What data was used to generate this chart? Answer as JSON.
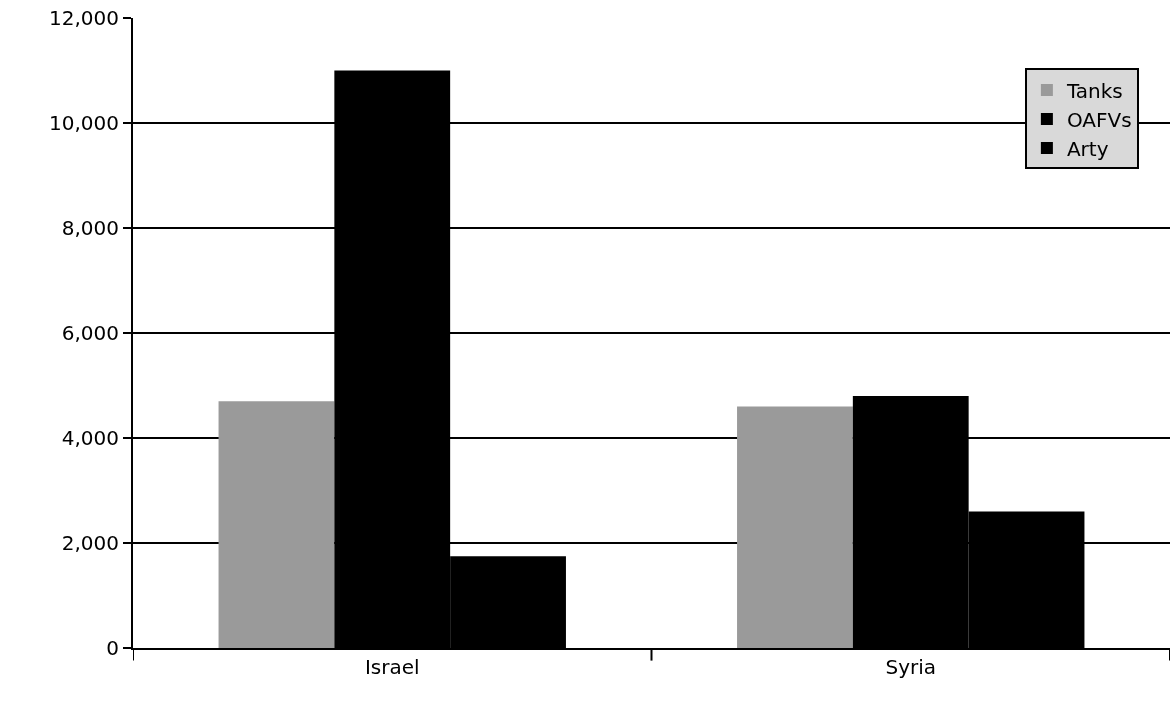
{
  "chart_data": {
    "type": "bar",
    "categories": [
      "Israel",
      "Syria"
    ],
    "series": [
      {
        "name": "Tanks",
        "color": "#9a9a9a",
        "values": [
          4700,
          4600
        ]
      },
      {
        "name": "OAFVs",
        "color": "#000000",
        "values": [
          11000,
          4800
        ]
      },
      {
        "name": "Arty",
        "color": "#000000",
        "values": [
          1750,
          2600
        ]
      }
    ],
    "ylim": [
      0,
      12000
    ],
    "yticks": [
      {
        "value": 0,
        "label": "0"
      },
      {
        "value": 2000,
        "label": "2,000"
      },
      {
        "value": 4000,
        "label": "4,000"
      },
      {
        "value": 6000,
        "label": "6,000"
      },
      {
        "value": 8000,
        "label": "8,000"
      },
      {
        "value": 10000,
        "label": "10,000"
      },
      {
        "value": 12000,
        "label": "12,000"
      }
    ],
    "grid": "y",
    "legend": "top right"
  }
}
